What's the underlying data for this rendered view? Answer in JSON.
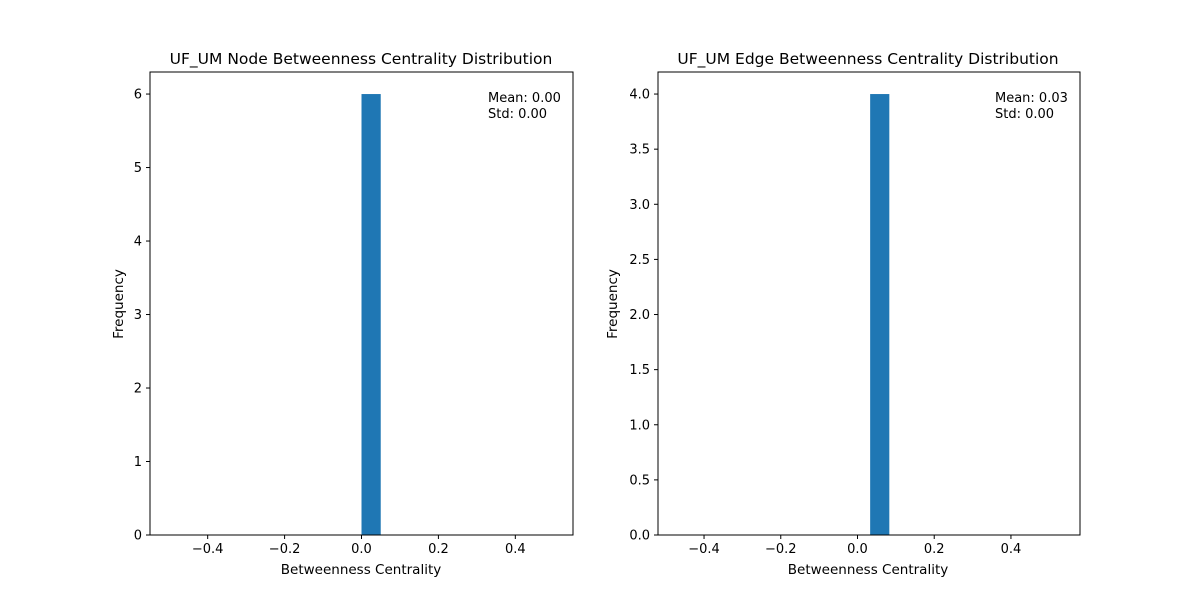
{
  "chart_data": [
    {
      "type": "bar",
      "title": "UF_UM Node Betweenness Centrality Distribution",
      "xlabel": "Betweenness Centrality",
      "ylabel": "Frequency",
      "xlim": [
        -0.55,
        0.55
      ],
      "ylim": [
        0,
        6.3
      ],
      "xticks": [
        -0.4,
        -0.2,
        0.0,
        0.2,
        0.4
      ],
      "xtick_labels": [
        "−0.4",
        "−0.2",
        "0.0",
        "0.2",
        "0.4"
      ],
      "yticks": [
        0,
        1,
        2,
        3,
        4,
        5,
        6
      ],
      "ytick_labels": [
        "0",
        "1",
        "2",
        "3",
        "4",
        "5",
        "6"
      ],
      "bars": [
        {
          "x0": 0.0,
          "x1": 0.05,
          "value": 6
        }
      ],
      "annotation_lines": [
        "Mean: 0.00",
        "Std: 0.00"
      ],
      "bar_color": "#1f77b4",
      "grid": false
    },
    {
      "type": "bar",
      "title": "UF_UM Edge Betweenness Centrality Distribution",
      "xlabel": "Betweenness Centrality",
      "ylabel": "Frequency",
      "xlim": [
        -0.52,
        0.58
      ],
      "ylim": [
        0,
        4.2
      ],
      "xticks": [
        -0.4,
        -0.2,
        0.0,
        0.2,
        0.4
      ],
      "xtick_labels": [
        "−0.4",
        "−0.2",
        "0.0",
        "0.2",
        "0.4"
      ],
      "yticks": [
        0,
        0.5,
        1.0,
        1.5,
        2.0,
        2.5,
        3.0,
        3.5,
        4.0
      ],
      "ytick_labels": [
        "0.0",
        "0.5",
        "1.0",
        "1.5",
        "2.0",
        "2.5",
        "3.0",
        "3.5",
        "4.0"
      ],
      "bars": [
        {
          "x0": 0.033,
          "x1": 0.083,
          "value": 4
        }
      ],
      "annotation_lines": [
        "Mean: 0.03",
        "Std: 0.00"
      ],
      "bar_color": "#1f77b4",
      "grid": false
    }
  ]
}
